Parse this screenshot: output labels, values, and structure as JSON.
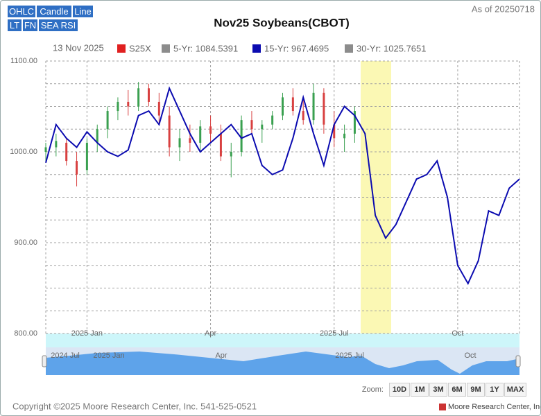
{
  "ui": {
    "view_buttons": [
      "OHLC",
      "Candle",
      "Line"
    ],
    "study_buttons": [
      "LT",
      "FN",
      "SEA RSI"
    ],
    "as_of": "As of 20250718",
    "zoom_label": "Zoom:",
    "zoom_buttons": [
      "10D",
      "1M",
      "3M",
      "6M",
      "9M",
      "1Y",
      "MAX"
    ],
    "navigator_labels": [
      "2024 Jul",
      "2025 Jan",
      "Apr",
      "2025 Jul",
      "Oct"
    ],
    "copyright": "Copyright ©2025 Moore Research Center, Inc. 541-525-0521",
    "brand": "Moore Research Center, Inc."
  },
  "chart_data": {
    "type": "line",
    "title": "Nov25 Soybeans(CBOT)",
    "legend_date": "13 Nov 2025",
    "categories": [
      null,
      null,
      null,
      null,
      "2025 Jan",
      null,
      null,
      null,
      null,
      null,
      null,
      null,
      null,
      null,
      null,
      null,
      "Apr",
      null,
      null,
      null,
      null,
      null,
      null,
      null,
      null,
      null,
      null,
      null,
      "2025 Jul",
      null,
      null,
      null,
      null,
      null,
      null,
      null,
      null,
      null,
      null,
      null,
      "Oct",
      null,
      null,
      null,
      null,
      null,
      null
    ],
    "series": [
      {
        "name": "S25X",
        "color": "#e02020",
        "type": "candlestick",
        "up_color": "#3aa050",
        "down_color": "#d84040",
        "open": [
          1000,
          1005,
          1010,
          990,
          980,
          1010,
          1025,
          1045,
          1055,
          1050,
          1070,
          1055,
          1040,
          1005,
          1015,
          1010,
          1028,
          1020,
          995,
          1000,
          1035,
          1025,
          1030,
          1040,
          1060,
          1045,
          1035,
          1065,
          1030,
          1015,
          1020
        ],
        "high": [
          1010,
          1020,
          1015,
          1000,
          1015,
          1030,
          1050,
          1060,
          1068,
          1077,
          1075,
          1065,
          1050,
          1025,
          1030,
          1035,
          1040,
          1030,
          1010,
          1040,
          1045,
          1035,
          1045,
          1065,
          1070,
          1060,
          1075,
          1070,
          1045,
          1030,
          1050
        ],
        "low": [
          990,
          995,
          985,
          962,
          975,
          1000,
          1015,
          1035,
          1040,
          1045,
          1050,
          1030,
          995,
          990,
          1000,
          1000,
          1010,
          990,
          972,
          995,
          1020,
          1010,
          1025,
          1035,
          1040,
          1030,
          1030,
          1020,
          1005,
          1000,
          1010
        ],
        "close": [
          1005,
          1012,
          990,
          975,
          1010,
          1025,
          1045,
          1055,
          1050,
          1070,
          1055,
          1040,
          1005,
          1015,
          1010,
          1028,
          1020,
          995,
          1000,
          1035,
          1025,
          1030,
          1040,
          1060,
          1045,
          1035,
          1065,
          1030,
          1015,
          1020,
          1045
        ]
      },
      {
        "name": "5-Yr: 1084.5391",
        "color": "#8c8c8c",
        "visible": false
      },
      {
        "name": "15-Yr: 967.4695",
        "color": "#0b0bb0",
        "values": [
          988,
          1030,
          1015,
          1005,
          1022,
          1010,
          1000,
          995,
          1002,
          1040,
          1045,
          1030,
          1070,
          1045,
          1020,
          1000,
          1010,
          1020,
          1030,
          1015,
          1020,
          985,
          975,
          980,
          1015,
          1060,
          1020,
          985,
          1030,
          1050,
          1040,
          1020,
          930,
          905,
          920,
          945,
          970,
          975,
          990,
          950,
          875,
          855,
          880,
          935,
          930,
          960,
          970
        ]
      },
      {
        "name": "30-Yr: 1025.7651",
        "color": "#8c8c8c",
        "visible": false
      }
    ],
    "ylim": [
      800,
      1100
    ],
    "yticks": [
      {
        "value": 800,
        "label": "800.00"
      },
      {
        "value": 900,
        "label": "900.00"
      },
      {
        "value": 1000,
        "label": "1000.00"
      },
      {
        "value": 1100,
        "label": "1100.00"
      }
    ],
    "minor_yticks": [
      825,
      850,
      875,
      925,
      950,
      975,
      1025,
      1050,
      1075
    ],
    "grid": true
  }
}
